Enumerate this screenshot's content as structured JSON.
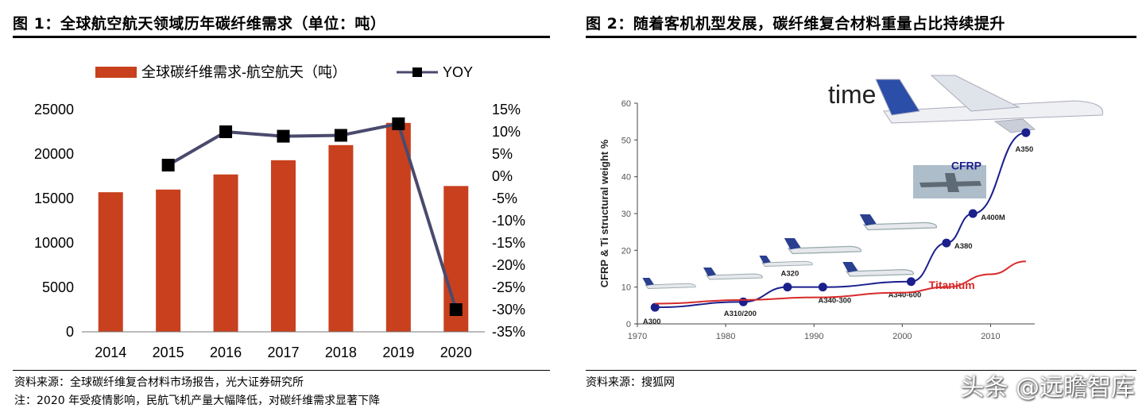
{
  "left": {
    "title": "图 1：全球航空航天领域历年碳纤维需求（单位：吨）",
    "source": "资料来源：全球碳纤维复合材料市场报告，光大证券研究所",
    "note": "注：2020 年受疫情影响，民航飞机产量大幅降低，对碳纤维需求显著下降"
  },
  "right": {
    "title": "图 2：随着客机机型发展，碳纤维复合材料重量占比持续提升",
    "source": "资料来源：搜狐网",
    "watermark": "头条 @远瞻智库"
  },
  "chart_data": [
    {
      "type": "bar",
      "categories": [
        "2014",
        "2015",
        "2016",
        "2017",
        "2018",
        "2019",
        "2020"
      ],
      "series": [
        {
          "name": "全球碳纤维需求-航空航天（吨）",
          "type": "bar",
          "axis": "left",
          "color": "#c8401d",
          "values": [
            15700,
            16000,
            17700,
            19300,
            21000,
            23500,
            16400
          ]
        },
        {
          "name": "YOY",
          "type": "line",
          "axis": "right",
          "color": "#4a4a6e",
          "values": [
            null,
            2.5,
            10.0,
            9.0,
            9.2,
            11.8,
            -30.0
          ]
        }
      ],
      "ylim": [
        0,
        25000
      ],
      "yticks": [
        "0",
        "5000",
        "10000",
        "15000",
        "20000",
        "25000"
      ],
      "y2lim": [
        -35,
        15
      ],
      "y2ticks": [
        "-35%",
        "-30%",
        "-25%",
        "-20%",
        "-15%",
        "-10%",
        "-5%",
        "0%",
        "5%",
        "10%",
        "15%"
      ],
      "legend_position": "top"
    },
    {
      "type": "line",
      "ylabel": "CFRP & Ti structural weight %",
      "xlim": [
        1970,
        2015
      ],
      "ylim": [
        0,
        60
      ],
      "xticks": [
        "1970",
        "1980",
        "1990",
        "2000",
        "2010"
      ],
      "yticks": [
        "0",
        "10",
        "20",
        "30",
        "40",
        "50",
        "60"
      ],
      "header_text": "time",
      "series": [
        {
          "name": "CFRP",
          "color": "#1a1f8c",
          "points": [
            {
              "x": 1972,
              "y": 4.5,
              "label": "A300"
            },
            {
              "x": 1982,
              "y": 6.0,
              "label": "A310/200"
            },
            {
              "x": 1987,
              "y": 10.0,
              "label": "A320"
            },
            {
              "x": 1991,
              "y": 10.0,
              "label": "A340-300"
            },
            {
              "x": 2001,
              "y": 11.5,
              "label": "A340-600"
            },
            {
              "x": 2005,
              "y": 22.0,
              "label": "A380"
            },
            {
              "x": 2008,
              "y": 30.0,
              "label": "A400M"
            },
            {
              "x": 2014,
              "y": 52.0,
              "label": "A350"
            }
          ]
        },
        {
          "name": "Titanium",
          "color": "#d82a2a",
          "points": [
            {
              "x": 1972,
              "y": 5.5
            },
            {
              "x": 1982,
              "y": 6.5
            },
            {
              "x": 1990,
              "y": 7.2
            },
            {
              "x": 2000,
              "y": 8.5
            },
            {
              "x": 2005,
              "y": 10.0
            },
            {
              "x": 2010,
              "y": 13.5
            },
            {
              "x": 2014,
              "y": 17.0
            }
          ]
        }
      ]
    }
  ]
}
